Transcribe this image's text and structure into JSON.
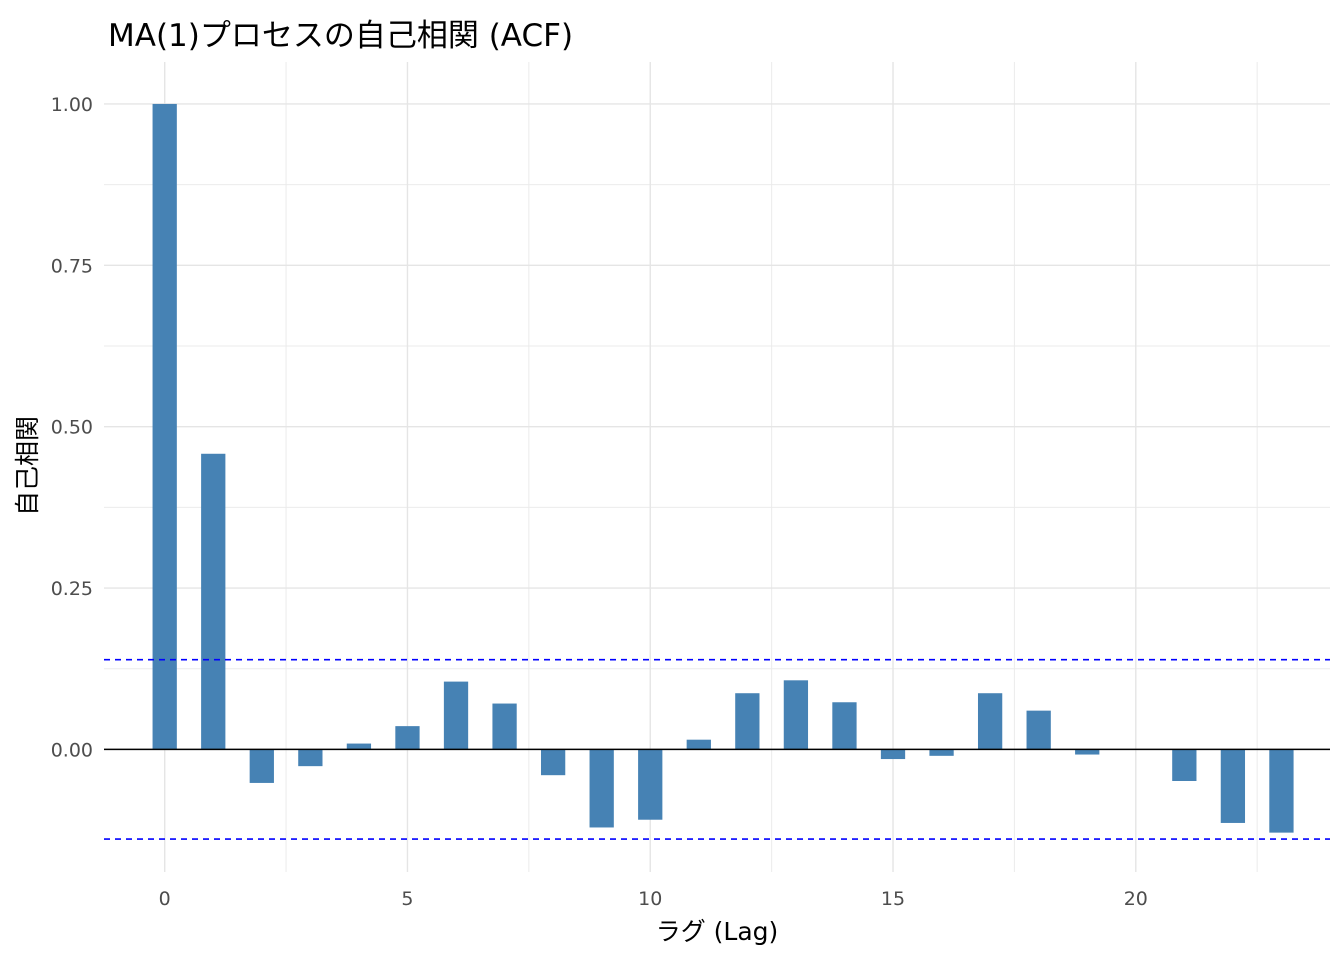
{
  "chart_data": {
    "type": "bar",
    "title": "MA(1)プロセスの自己相関 (ACF)",
    "xlabel": "ラグ (Lag)",
    "ylabel": "自己相関",
    "x": [
      0,
      1,
      2,
      3,
      4,
      5,
      6,
      7,
      8,
      9,
      10,
      11,
      12,
      13,
      14,
      15,
      16,
      17,
      18,
      19,
      20,
      21,
      22,
      23
    ],
    "values": [
      1.0,
      0.458,
      -0.052,
      -0.026,
      0.009,
      0.036,
      0.105,
      0.071,
      -0.04,
      -0.121,
      -0.109,
      0.015,
      0.087,
      0.107,
      0.073,
      -0.015,
      -0.01,
      0.087,
      0.06,
      -0.008,
      0.0,
      -0.049,
      -0.114,
      -0.129
    ],
    "xlim": [
      -1.25,
      24.0
    ],
    "ylim": [
      -0.19,
      1.065
    ],
    "x_ticks": [
      0,
      5,
      10,
      15,
      20
    ],
    "x_tick_labels": [
      "0",
      "5",
      "10",
      "15",
      "20"
    ],
    "y_ticks": [
      0.0,
      0.25,
      0.5,
      0.75,
      1.0
    ],
    "y_tick_labels": [
      "0.00",
      "0.25",
      "0.50",
      "0.75",
      "1.00"
    ],
    "confidence_bound": 0.139,
    "bar_color": "#4682b4",
    "bound_color": "#0000ff",
    "zero_line_color": "#000000",
    "grid": true,
    "legend": "none"
  }
}
